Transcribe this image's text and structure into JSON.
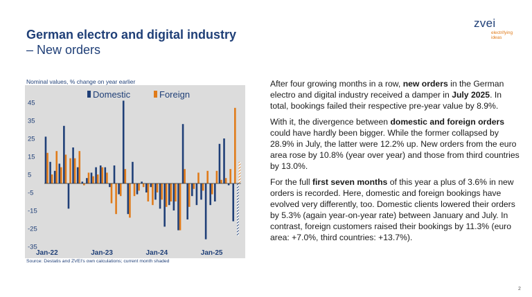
{
  "slide": {
    "title": "German electro and digital industry",
    "subtitle": "– New orders",
    "page_number": "2"
  },
  "logo": {
    "wordmark": "zvei",
    "tagline_line1": "electrifying",
    "tagline_line2": "ideas",
    "color_primary": "#1f3f77",
    "color_accent": "#e07b1a"
  },
  "chart_note": "Nominal values, % change on year earlier",
  "chart_source": "Source: Destatis and ZVEI's own calculations; current month shaded",
  "body": {
    "p1": [
      {
        "t": "After four growing months in a row, "
      },
      {
        "t": "new orders",
        "b": true
      },
      {
        "t": " in the German electro and digital industry received a damper in "
      },
      {
        "t": "July 2025",
        "b": true
      },
      {
        "t": ". In total, bookings failed their respective pre-year value by 8.9%."
      }
    ],
    "p2": [
      {
        "t": "With it, the divergence between "
      },
      {
        "t": "domestic and foreign orders",
        "b": true
      },
      {
        "t": " could have hardly been bigger. While the former collapsed by 28.9% in July, the latter were 12.2% up. New orders from the euro area rose by 10.8% (year over year) and those from third countries by 13.0%."
      }
    ],
    "p3": [
      {
        "t": "For the full "
      },
      {
        "t": "first seven months",
        "b": true
      },
      {
        "t": " of this year a plus of 3.6% in new orders is recorded. Here, domestic and foreign bookings have evolved very differently, too. Domestic clients lowered their orders by 5.3% (again year-on-year rate) between January and July. In contrast, foreign customers raised their bookings by 11.3% (euro area: +7.0%, third countries: +13.7%)."
      }
    ]
  },
  "chart_data": {
    "type": "bar",
    "x_tick_labels": [
      "Jan-22",
      "Jan-23",
      "Jan-24",
      "Jan-25"
    ],
    "x_tick_positions": [
      0,
      12,
      24,
      36
    ],
    "categories_count": 43,
    "ylim": [
      -35,
      50
    ],
    "y_ticks": [
      45,
      35,
      25,
      15,
      5,
      -5,
      -15,
      -25,
      -35
    ],
    "legend": {
      "placement": "top-center"
    },
    "shaded_last_point": true,
    "plot_background": "#dcdcdc",
    "series": [
      {
        "name": "Domestic",
        "color": "#1f3f77",
        "values": [
          26,
          12,
          7,
          11,
          32,
          -14,
          20,
          9,
          1,
          3,
          6,
          9,
          10,
          9,
          -2,
          10,
          -6,
          46,
          -17,
          12,
          -6,
          1,
          -5,
          -2,
          -9,
          -14,
          -24,
          -12,
          -15,
          -26,
          33,
          -20,
          -7,
          -12,
          -9,
          -31,
          -12,
          -10,
          22,
          25,
          -1,
          -21,
          -29
        ]
      },
      {
        "name": "Foreign",
        "color": "#e07b1a",
        "values": [
          17,
          5,
          18,
          9,
          16,
          14,
          14,
          18,
          -1,
          6,
          4,
          5,
          9,
          6,
          -11,
          -17,
          -7,
          8,
          -19,
          -7,
          -4,
          -2,
          -10,
          -12,
          -5,
          -9,
          -13,
          -10,
          -10,
          -26,
          8,
          -13,
          -3,
          6,
          -4,
          7,
          -6,
          7,
          2,
          3,
          8,
          42,
          12
        ]
      }
    ]
  }
}
